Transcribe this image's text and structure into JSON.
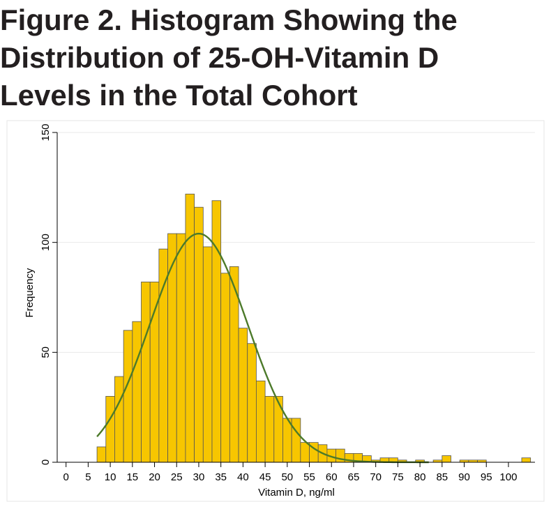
{
  "title_lines": [
    "Figure 2. Histogram Showing the",
    "Distribution of 25-OH-Vitamin D",
    "Levels in the Total Cohort"
  ],
  "chart_data": {
    "type": "bar",
    "title": "Figure 2. Histogram Showing the Distribution of 25-OH-Vitamin D Levels in the Total Cohort",
    "xlabel": "Vitamin D, ng/ml",
    "ylabel": "Frequency",
    "xlim": [
      -2,
      106
    ],
    "ylim": [
      0,
      150
    ],
    "x_ticks": [
      0,
      5,
      10,
      15,
      20,
      25,
      30,
      35,
      40,
      45,
      50,
      55,
      60,
      65,
      70,
      75,
      80,
      85,
      90,
      95,
      100
    ],
    "y_ticks": [
      0,
      50,
      100,
      150
    ],
    "grid": true,
    "bin_width": 2,
    "bins": [
      {
        "x0": 7,
        "value": 7
      },
      {
        "x0": 9,
        "value": 30
      },
      {
        "x0": 11,
        "value": 39
      },
      {
        "x0": 13,
        "value": 60
      },
      {
        "x0": 15,
        "value": 64
      },
      {
        "x0": 17,
        "value": 82
      },
      {
        "x0": 19,
        "value": 82
      },
      {
        "x0": 21,
        "value": 97
      },
      {
        "x0": 23,
        "value": 104
      },
      {
        "x0": 25,
        "value": 104
      },
      {
        "x0": 27,
        "value": 122
      },
      {
        "x0": 29,
        "value": 116
      },
      {
        "x0": 31,
        "value": 98
      },
      {
        "x0": 33,
        "value": 119
      },
      {
        "x0": 35,
        "value": 86
      },
      {
        "x0": 37,
        "value": 89
      },
      {
        "x0": 39,
        "value": 61
      },
      {
        "x0": 41,
        "value": 54
      },
      {
        "x0": 43,
        "value": 37
      },
      {
        "x0": 45,
        "value": 30
      },
      {
        "x0": 47,
        "value": 30
      },
      {
        "x0": 49,
        "value": 20
      },
      {
        "x0": 51,
        "value": 20
      },
      {
        "x0": 53,
        "value": 9
      },
      {
        "x0": 55,
        "value": 9
      },
      {
        "x0": 57,
        "value": 8
      },
      {
        "x0": 59,
        "value": 6
      },
      {
        "x0": 61,
        "value": 6
      },
      {
        "x0": 63,
        "value": 4
      },
      {
        "x0": 65,
        "value": 4
      },
      {
        "x0": 67,
        "value": 3
      },
      {
        "x0": 69,
        "value": 1
      },
      {
        "x0": 71,
        "value": 2
      },
      {
        "x0": 73,
        "value": 2
      },
      {
        "x0": 75,
        "value": 1
      },
      {
        "x0": 79,
        "value": 1
      },
      {
        "x0": 83,
        "value": 1
      },
      {
        "x0": 85,
        "value": 3
      },
      {
        "x0": 89,
        "value": 1
      },
      {
        "x0": 91,
        "value": 1
      },
      {
        "x0": 93,
        "value": 1
      },
      {
        "x0": 103,
        "value": 2
      }
    ],
    "normal_curve": {
      "mean": 30,
      "sd": 11,
      "peak": 104,
      "x_range": [
        7,
        82
      ]
    },
    "colors": {
      "bar_fill": "#f7c600",
      "bar_outline": "#555555",
      "curve": "#4c7a2a",
      "grid": "#eaeaea",
      "panel_border": "#e6e6e6"
    }
  }
}
